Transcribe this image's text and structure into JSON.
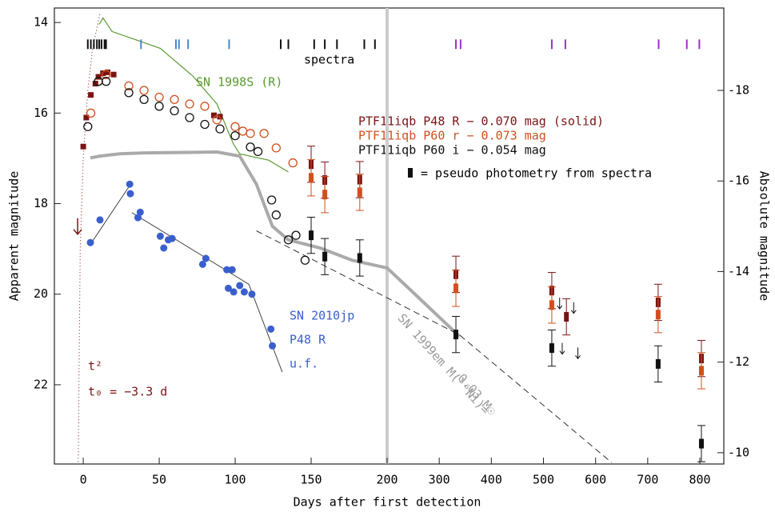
{
  "chart_data": {
    "type": "scatter",
    "xlabel": "Days after first detection",
    "ylabel": "Apparent magnitude",
    "y2label": "Absolute magnitude",
    "xlim": [
      -19,
      846
    ],
    "x_break": 200,
    "ylim": [
      13.68,
      23.75
    ],
    "y2lim": [
      -19.82,
      -9.75
    ],
    "y_inverted": true,
    "xticks": [
      0,
      50,
      100,
      150,
      200,
      300,
      400,
      500,
      600,
      700,
      800
    ],
    "yticks": [
      14,
      16,
      18,
      20,
      22
    ],
    "y2ticks": [
      -18,
      -16,
      -14,
      -12,
      -10
    ],
    "series": [
      {
        "name": "PTF11iqb P48 R − 0.070 mag (solid)",
        "color": "#7a1414",
        "marker": "square",
        "x": [
          0,
          2,
          5,
          8,
          10,
          13,
          16,
          20,
          86,
          90
        ],
        "values": [
          16.74,
          16.1,
          15.6,
          15.35,
          15.2,
          15.12,
          15.1,
          15.15,
          16.05,
          16.08
        ]
      },
      {
        "name": "PTF11iqb P60 r − 0.073 mag",
        "color": "#d0501e",
        "marker": "circle",
        "x": [
          5,
          10,
          15,
          30,
          40,
          50,
          60,
          70,
          80,
          88,
          100,
          105,
          110,
          119,
          127,
          138
        ],
        "values": [
          16.0,
          15.3,
          15.15,
          15.4,
          15.5,
          15.65,
          15.7,
          15.8,
          15.85,
          16.15,
          16.3,
          16.4,
          16.45,
          16.45,
          16.77,
          17.1
        ]
      },
      {
        "name": "PTF11iqb P60 i − 0.054 mag",
        "color": "#111111",
        "marker": "circle",
        "x": [
          3,
          10,
          15,
          30,
          40,
          50,
          60,
          70,
          80,
          90,
          100,
          110,
          115,
          124,
          127,
          135,
          140,
          146
        ],
        "values": [
          16.3,
          15.3,
          15.3,
          15.55,
          15.7,
          15.85,
          15.95,
          16.1,
          16.25,
          16.35,
          16.5,
          16.75,
          16.85,
          17.92,
          18.25,
          18.8,
          18.7,
          19.25
        ]
      },
      {
        "name": "SN 2010jp",
        "color": "#3a5fcd",
        "marker": "dot",
        "x": [
          4.7,
          11,
          30.6,
          31,
          36,
          37.5,
          50.7,
          53,
          56,
          58.5,
          78.6,
          80.7,
          94.5,
          98,
          95.5,
          99,
          103,
          106,
          111,
          123.5,
          124.5
        ],
        "values": [
          18.86,
          18.36,
          17.57,
          17.78,
          18.31,
          18.19,
          18.72,
          18.98,
          18.8,
          18.77,
          19.34,
          19.21,
          19.46,
          19.46,
          19.87,
          19.95,
          19.81,
          19.95,
          20.0,
          20.77,
          21.14
        ]
      }
    ],
    "pseudo_photometry": {
      "label": "= pseudo photometry from spectra",
      "series": [
        {
          "color": "#7a1414",
          "x": [
            150,
            159,
            182,
            332,
            516,
            544,
            720,
            803
          ],
          "values": [
            17.13,
            17.48,
            17.47,
            19.56,
            19.92,
            20.5,
            20.18,
            21.42
          ],
          "errors": [
            0.4,
            0.4,
            0.4,
            0.4,
            0.4,
            0.4,
            0.4,
            0.4
          ]
        },
        {
          "color": "#d0501e",
          "x": [
            150,
            159,
            182,
            332,
            516,
            720,
            803
          ],
          "values": [
            17.43,
            17.8,
            17.75,
            19.87,
            20.24,
            20.45,
            21.69
          ],
          "errors": [
            0.4,
            0.4,
            0.4,
            0.4,
            0.4,
            0.4,
            0.4
          ]
        },
        {
          "color": "#111111",
          "x": [
            150,
            159,
            182,
            332,
            516,
            720,
            803
          ],
          "values": [
            18.7,
            19.17,
            19.2,
            20.89,
            21.19,
            21.54,
            23.3
          ],
          "errors": [
            0.4,
            0.4,
            0.4,
            0.4,
            0.4,
            0.4,
            0.4
          ]
        }
      ]
    },
    "upper_limits": {
      "color": "#111111",
      "x": [
        531,
        536,
        558,
        566
      ],
      "values": [
        20.2,
        21.2,
        20.3,
        21.3
      ]
    },
    "early_limit": {
      "color": "#7a1414",
      "x": -3.7,
      "value": 18.5
    },
    "curves": [
      {
        "name": "SN 1998S (R)",
        "color": "#5a9a30",
        "width": 1.2,
        "x": [
          10.5,
          13,
          19,
          50.7,
          72,
          88,
          95.5,
          99,
          103,
          122,
          135
        ],
        "values": [
          14.04,
          13.9,
          14.2,
          14.57,
          15.18,
          15.8,
          16.42,
          16.69,
          16.9,
          17.04,
          17.3
        ]
      },
      {
        "color": "#aaaaaa",
        "width": 4,
        "x": [
          4.7,
          11,
          24,
          40,
          88,
          103,
          114,
          124.5,
          135,
          156,
          177,
          200,
          339
        ],
        "values": [
          16.99,
          16.95,
          16.9,
          16.88,
          16.86,
          16.95,
          17.57,
          18.5,
          18.8,
          18.98,
          19.25,
          19.42,
          20.93
        ]
      },
      {
        "name": "SN 1999em M(⁵⁶Ni)=",
        "name2": "0.03 M☉",
        "color": "#333333",
        "width": 1,
        "dash": true,
        "x": [
          114,
          339,
          631
        ],
        "values": [
          18.6,
          20.9,
          23.72
        ]
      },
      {
        "name": "t²",
        "color": "#7a1414",
        "width": 1,
        "dot": true,
        "x": [
          -3.3,
          -2,
          0,
          3,
          6,
          11
        ],
        "values": [
          23.7,
          19,
          17,
          15.5,
          14.6,
          13.8
        ]
      },
      {
        "color": "#444444",
        "width": 1,
        "x": [
          4.7,
          30.6
        ],
        "values": [
          18.9,
          17.6
        ]
      },
      {
        "color": "#444444",
        "width": 1,
        "x": [
          32,
          109,
          131
        ],
        "values": [
          18.2,
          19.78,
          21.72
        ]
      }
    ],
    "spectra": {
      "label": "spectra",
      "mag": 14.48,
      "groups": [
        {
          "color": "#111111",
          "x": [
            3,
            5,
            7,
            9,
            10.5,
            12,
            14,
            15,
            130,
            135,
            152,
            159,
            167,
            185,
            192
          ]
        },
        {
          "color": "#4a86c8",
          "x": [
            38,
            61,
            63,
            69,
            96
          ]
        },
        {
          "color": "#9b30c8",
          "x": [
            332,
            341,
            516,
            542,
            721,
            775,
            799
          ]
        }
      ]
    },
    "annotations": {
      "jp_band": "P48 R",
      "jp_uf": "u.f.",
      "t0": "t₀ = −3.3 d"
    }
  }
}
